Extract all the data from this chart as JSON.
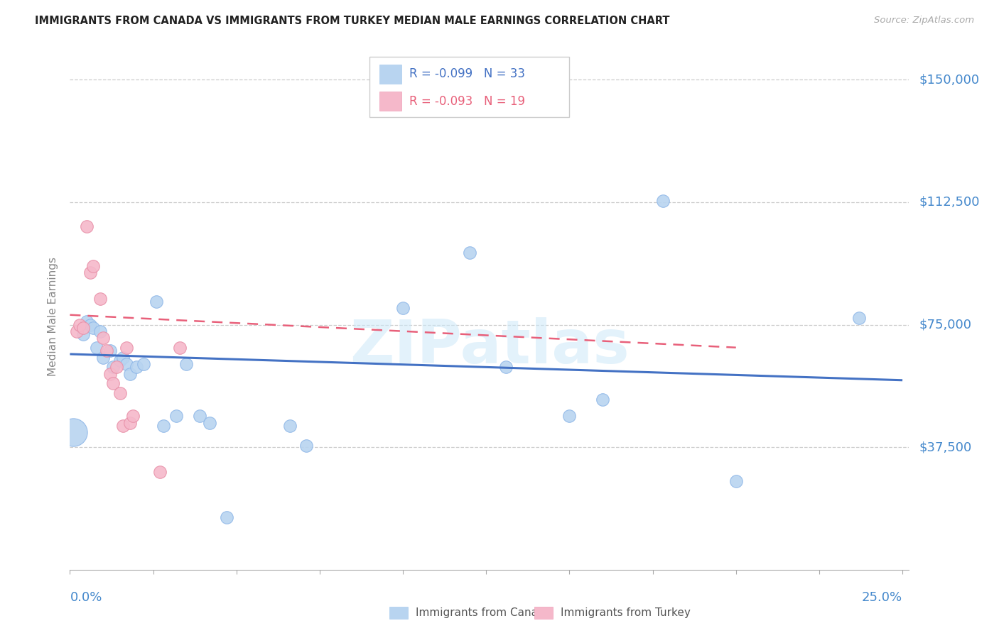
{
  "title": "IMMIGRANTS FROM CANADA VS IMMIGRANTS FROM TURKEY MEDIAN MALE EARNINGS CORRELATION CHART",
  "source": "Source: ZipAtlas.com",
  "ylabel": "Median Male Earnings",
  "ytick_vals": [
    0,
    37500,
    75000,
    112500,
    150000
  ],
  "ytick_labels": [
    "",
    "$37,500",
    "$75,000",
    "$112,500",
    "$150,000"
  ],
  "xmin": 0.0,
  "xmax": 0.25,
  "ymin": 0,
  "ymax": 155000,
  "legend_canada_r": "R = -0.099",
  "legend_canada_n": "N = 33",
  "legend_turkey_r": "R = -0.093",
  "legend_turkey_n": "N = 19",
  "canada_color": "#b8d4f0",
  "canada_edge_color": "#90b8e8",
  "turkey_color": "#f5b8ca",
  "turkey_edge_color": "#e890a8",
  "canada_line_color": "#4472c4",
  "turkey_line_color": "#e8607a",
  "axis_label_color": "#4488cc",
  "watermark_text": "ZIPatlas",
  "canada_points_xy": [
    [
      0.001,
      42000
    ],
    [
      0.004,
      72000
    ],
    [
      0.005,
      76000
    ],
    [
      0.006,
      75000
    ],
    [
      0.007,
      74000
    ],
    [
      0.008,
      68000
    ],
    [
      0.009,
      73000
    ],
    [
      0.01,
      65000
    ],
    [
      0.012,
      67000
    ],
    [
      0.013,
      62000
    ],
    [
      0.015,
      64000
    ],
    [
      0.016,
      65000
    ],
    [
      0.017,
      63000
    ],
    [
      0.018,
      60000
    ],
    [
      0.02,
      62000
    ],
    [
      0.022,
      63000
    ],
    [
      0.026,
      82000
    ],
    [
      0.028,
      44000
    ],
    [
      0.032,
      47000
    ],
    [
      0.035,
      63000
    ],
    [
      0.039,
      47000
    ],
    [
      0.042,
      45000
    ],
    [
      0.047,
      16000
    ],
    [
      0.066,
      44000
    ],
    [
      0.071,
      38000
    ],
    [
      0.1,
      80000
    ],
    [
      0.12,
      97000
    ],
    [
      0.131,
      62000
    ],
    [
      0.15,
      47000
    ],
    [
      0.16,
      52000
    ],
    [
      0.178,
      113000
    ],
    [
      0.2,
      27000
    ],
    [
      0.237,
      77000
    ]
  ],
  "canada_sizes": [
    200,
    40,
    40,
    40,
    40,
    40,
    40,
    40,
    40,
    40,
    40,
    40,
    40,
    40,
    40,
    40,
    40,
    40,
    40,
    40,
    40,
    40,
    40,
    40,
    40,
    40,
    40,
    40,
    40,
    40,
    40,
    40,
    40
  ],
  "turkey_points_xy": [
    [
      0.002,
      73000
    ],
    [
      0.003,
      75000
    ],
    [
      0.004,
      74000
    ],
    [
      0.005,
      105000
    ],
    [
      0.006,
      91000
    ],
    [
      0.007,
      93000
    ],
    [
      0.009,
      83000
    ],
    [
      0.01,
      71000
    ],
    [
      0.011,
      67000
    ],
    [
      0.012,
      60000
    ],
    [
      0.013,
      57000
    ],
    [
      0.014,
      62000
    ],
    [
      0.015,
      54000
    ],
    [
      0.016,
      44000
    ],
    [
      0.017,
      68000
    ],
    [
      0.018,
      45000
    ],
    [
      0.019,
      47000
    ],
    [
      0.027,
      30000
    ],
    [
      0.033,
      68000
    ]
  ],
  "turkey_sizes": [
    40,
    40,
    40,
    40,
    40,
    40,
    40,
    40,
    40,
    40,
    40,
    40,
    40,
    40,
    40,
    40,
    40,
    40,
    40
  ],
  "canada_trend_x": [
    0.0,
    0.25
  ],
  "canada_trend_y": [
    66000,
    58000
  ],
  "turkey_trend_x": [
    0.0,
    0.2
  ],
  "turkey_trend_y": [
    78000,
    68000
  ]
}
